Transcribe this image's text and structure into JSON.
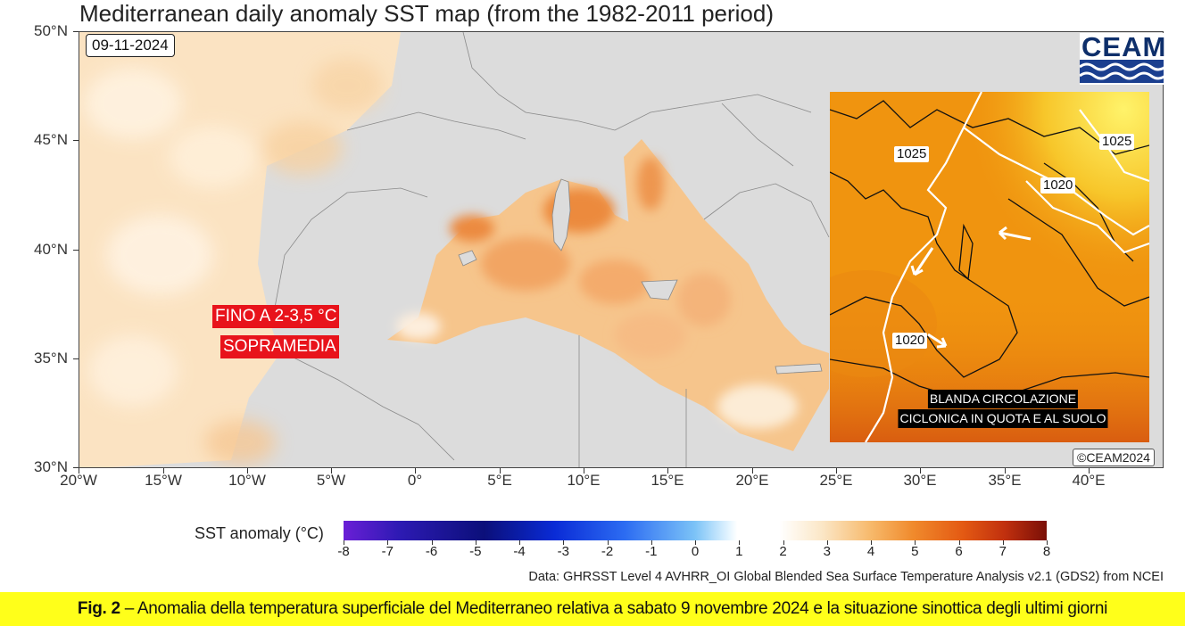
{
  "title": "Mediterranean daily anomaly SST map (from the 1982-2011 period)",
  "date": "09-11-2024",
  "logo": {
    "text": "CEAM",
    "icon": "wave-logo-icon"
  },
  "copyright": "©CEAM2024",
  "axes": {
    "lat_labels": [
      "50°N",
      "45°N",
      "40°N",
      "35°N",
      "30°N"
    ],
    "lon_labels": [
      "20°W",
      "15°W",
      "10°W",
      "5°W",
      "0°",
      "5°E",
      "10°E",
      "15°E",
      "20°E",
      "25°E",
      "30°E",
      "35°E",
      "40°E"
    ]
  },
  "annotation": {
    "line1": "FINO A 2-3,5 °C",
    "line2": "SOPRAMEDIA"
  },
  "inset": {
    "isobars": [
      "1025",
      "1025",
      "1020",
      "1020"
    ],
    "label_line1": "BLANDA CIRCOLAZIONE",
    "label_line2": "CICLONICA IN QUOTA E AL SUOLO"
  },
  "colorbar": {
    "title": "SST anomaly (°C)",
    "ticks": [
      "-8",
      "-7",
      "-6",
      "-5",
      "-4",
      "-3",
      "-2",
      "-1",
      "0",
      "1",
      "2",
      "3",
      "4",
      "5",
      "6",
      "7",
      "8"
    ],
    "colors": [
      "#6a1fd6",
      "#0b0f7a",
      "#0a2bd6",
      "#7cc3f7",
      "#ffffff",
      "#f7b96b",
      "#e45a13",
      "#7a0f07"
    ]
  },
  "source": "Data: GHRSST Level 4 AVHRR_OI Global Blended Sea Surface Temperature Analysis v2.1 (GDS2) from NCEI",
  "caption": {
    "prefix": "Fig. 2",
    "text": " – Anomalia della temperatura superficiale del Mediterraneo relativa a sabato 9 novembre 2024 e la situazione sinottica degli ultimi giorni"
  },
  "colors": {
    "land": "#dcdcdc",
    "caption_bg": "#ffff1a",
    "label_red": "#e8131b",
    "inset_orange": "#f0940f"
  }
}
